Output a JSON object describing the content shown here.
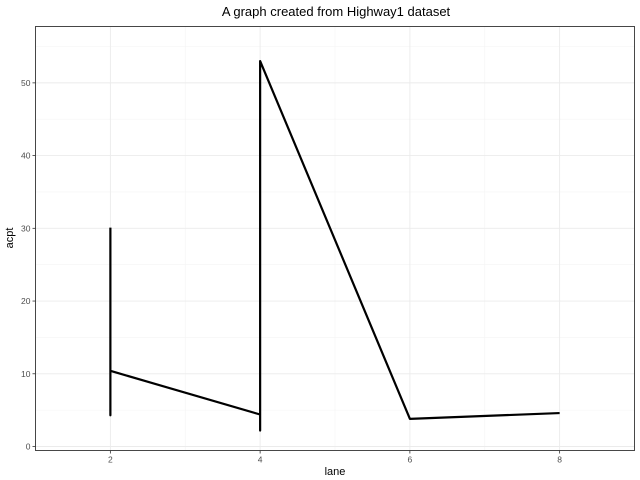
{
  "chart_data": {
    "type": "line",
    "title": "A graph created from Highway1 dataset",
    "xlabel": "lane",
    "ylabel": "acpt",
    "xlim": [
      1,
      9
    ],
    "ylim": [
      0,
      55
    ],
    "x_ticks": [
      2,
      4,
      6,
      8
    ],
    "y_ticks": [
      0,
      10,
      20,
      30,
      40,
      50
    ],
    "grid": true,
    "legend": "none",
    "line_color": "#000000",
    "series": [
      {
        "points": [
          {
            "x": 2,
            "y": 30.1
          },
          {
            "x": 2,
            "y": 4.3
          },
          {
            "x": 2,
            "y": 10.4
          },
          {
            "x": 4,
            "y": 4.4
          },
          {
            "x": 4,
            "y": 2.2
          },
          {
            "x": 4,
            "y": 53.0
          },
          {
            "x": 6,
            "y": 3.8
          },
          {
            "x": 8,
            "y": 4.6
          }
        ]
      }
    ]
  }
}
